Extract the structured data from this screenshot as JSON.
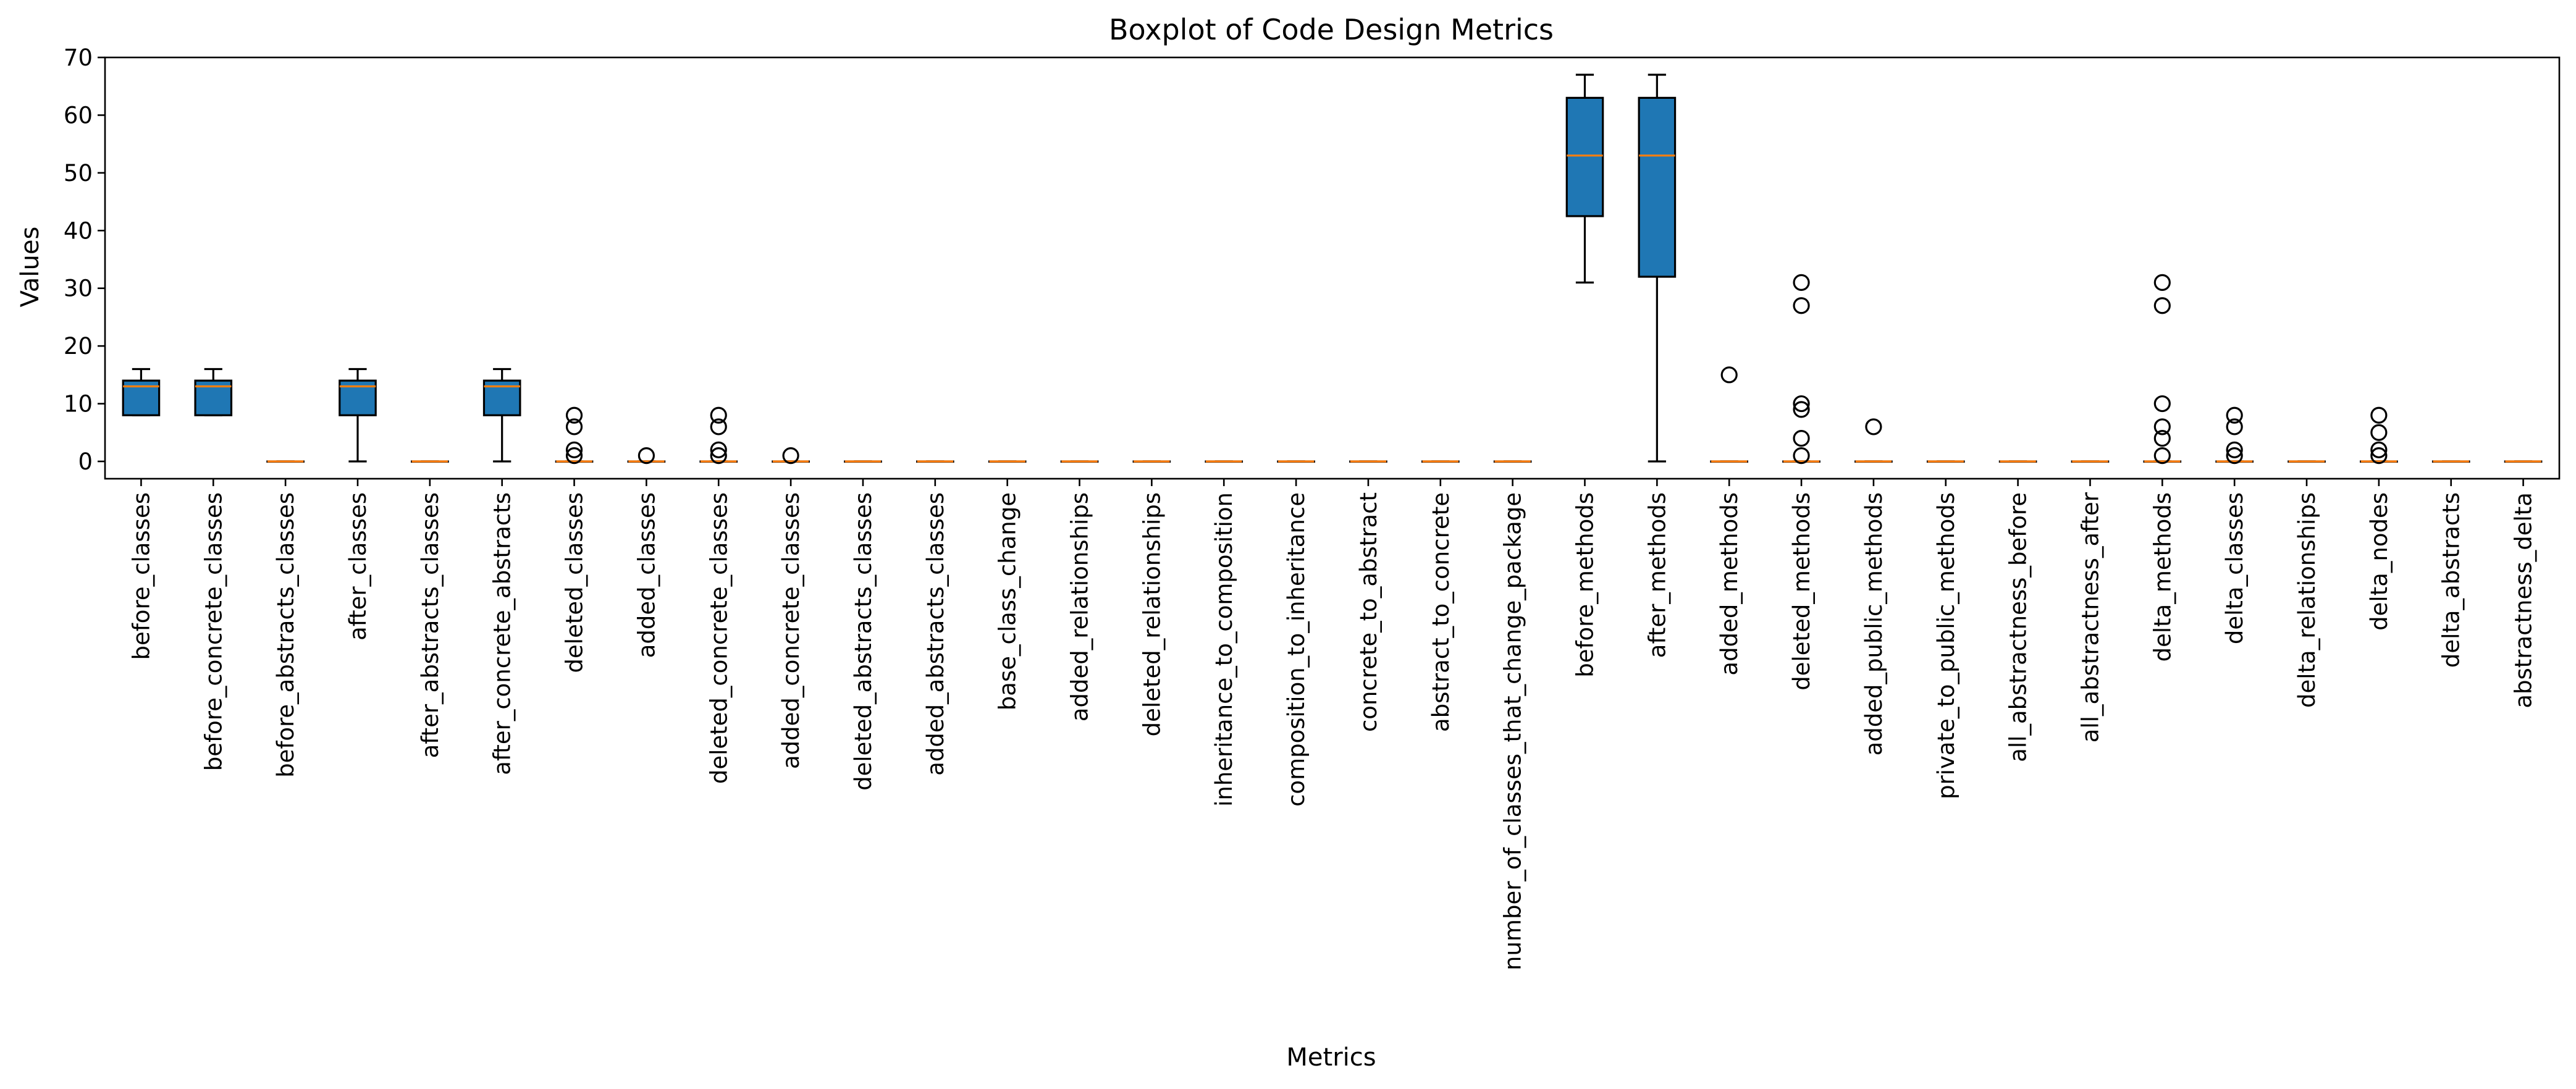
{
  "chart_data": {
    "type": "boxplot",
    "title": "Boxplot of Code Design Metrics",
    "xlabel": "Metrics",
    "ylabel": "Values",
    "ylim": [
      -3,
      70
    ],
    "yticks": [
      0,
      10,
      20,
      30,
      40,
      50,
      60,
      70
    ],
    "grid": false,
    "colors": {
      "box_fill": "#1f77b4",
      "median": "#ff7f0e",
      "edge": "#000000"
    },
    "categories": [
      "before_classes",
      "before_concrete_classes",
      "before_abstracts_classes",
      "after_classes",
      "after_abstracts_classes",
      "after_concrete_abstracts",
      "deleted_classes",
      "added_classes",
      "deleted_concrete_classes",
      "added_concrete_classes",
      "deleted_abstracts_classes",
      "added_abstracts_classes",
      "base_class_change",
      "added_relationships",
      "deleted_relationships",
      "inheritance_to_composition",
      "composition_to_inheritance",
      "concrete_to_abstract",
      "abstract_to_concrete",
      "number_of_classes_that_change_package",
      "before_methods",
      "after_methods",
      "added_methods",
      "deleted_methods",
      "added_public_methods",
      "private_to_public_methods",
      "all_abstractness_before",
      "all_abstractness_after",
      "delta_methods",
      "delta_classes",
      "delta_relationships",
      "delta_nodes",
      "delta_abstracts",
      "abstractness_delta"
    ],
    "boxes": [
      {
        "whislo": 8,
        "q1": 8,
        "med": 13,
        "q3": 14,
        "whishi": 16,
        "fliers": []
      },
      {
        "whislo": 8,
        "q1": 8,
        "med": 13,
        "q3": 14,
        "whishi": 16,
        "fliers": []
      },
      {
        "whislo": 0,
        "q1": 0,
        "med": 0,
        "q3": 0,
        "whishi": 0,
        "fliers": []
      },
      {
        "whislo": 0,
        "q1": 8,
        "med": 13,
        "q3": 14,
        "whishi": 16,
        "fliers": []
      },
      {
        "whislo": 0,
        "q1": 0,
        "med": 0,
        "q3": 0,
        "whishi": 0,
        "fliers": []
      },
      {
        "whislo": 0,
        "q1": 8,
        "med": 13,
        "q3": 14,
        "whishi": 16,
        "fliers": []
      },
      {
        "whislo": 0,
        "q1": 0,
        "med": 0,
        "q3": 0,
        "whishi": 0,
        "fliers": [
          8,
          6,
          2,
          1
        ]
      },
      {
        "whislo": 0,
        "q1": 0,
        "med": 0,
        "q3": 0,
        "whishi": 0,
        "fliers": [
          1
        ]
      },
      {
        "whislo": 0,
        "q1": 0,
        "med": 0,
        "q3": 0,
        "whishi": 0,
        "fliers": [
          8,
          6,
          2,
          1
        ]
      },
      {
        "whislo": 0,
        "q1": 0,
        "med": 0,
        "q3": 0,
        "whishi": 0,
        "fliers": [
          1
        ]
      },
      {
        "whislo": 0,
        "q1": 0,
        "med": 0,
        "q3": 0,
        "whishi": 0,
        "fliers": []
      },
      {
        "whislo": 0,
        "q1": 0,
        "med": 0,
        "q3": 0,
        "whishi": 0,
        "fliers": []
      },
      {
        "whislo": 0,
        "q1": 0,
        "med": 0,
        "q3": 0,
        "whishi": 0,
        "fliers": []
      },
      {
        "whislo": 0,
        "q1": 0,
        "med": 0,
        "q3": 0,
        "whishi": 0,
        "fliers": []
      },
      {
        "whislo": 0,
        "q1": 0,
        "med": 0,
        "q3": 0,
        "whishi": 0,
        "fliers": []
      },
      {
        "whislo": 0,
        "q1": 0,
        "med": 0,
        "q3": 0,
        "whishi": 0,
        "fliers": []
      },
      {
        "whislo": 0,
        "q1": 0,
        "med": 0,
        "q3": 0,
        "whishi": 0,
        "fliers": []
      },
      {
        "whislo": 0,
        "q1": 0,
        "med": 0,
        "q3": 0,
        "whishi": 0,
        "fliers": []
      },
      {
        "whislo": 0,
        "q1": 0,
        "med": 0,
        "q3": 0,
        "whishi": 0,
        "fliers": []
      },
      {
        "whislo": 0,
        "q1": 0,
        "med": 0,
        "q3": 0,
        "whishi": 0,
        "fliers": []
      },
      {
        "whislo": 31,
        "q1": 42.5,
        "med": 53,
        "q3": 63,
        "whishi": 67,
        "fliers": []
      },
      {
        "whislo": 0,
        "q1": 32,
        "med": 53,
        "q3": 63,
        "whishi": 67,
        "fliers": []
      },
      {
        "whislo": 0,
        "q1": 0,
        "med": 0,
        "q3": 0,
        "whishi": 0,
        "fliers": [
          15
        ]
      },
      {
        "whislo": 0,
        "q1": 0,
        "med": 0,
        "q3": 0,
        "whishi": 0,
        "fliers": [
          31,
          27,
          10,
          9,
          4,
          1
        ]
      },
      {
        "whislo": 0,
        "q1": 0,
        "med": 0,
        "q3": 0,
        "whishi": 0,
        "fliers": [
          6
        ]
      },
      {
        "whislo": 0,
        "q1": 0,
        "med": 0,
        "q3": 0,
        "whishi": 0,
        "fliers": []
      },
      {
        "whislo": 0,
        "q1": 0,
        "med": 0,
        "q3": 0,
        "whishi": 0,
        "fliers": []
      },
      {
        "whislo": 0,
        "q1": 0,
        "med": 0,
        "q3": 0,
        "whishi": 0,
        "fliers": []
      },
      {
        "whislo": 0,
        "q1": 0,
        "med": 0,
        "q3": 0,
        "whishi": 0,
        "fliers": [
          31,
          27,
          10,
          6,
          4,
          1
        ]
      },
      {
        "whislo": 0,
        "q1": 0,
        "med": 0,
        "q3": 0,
        "whishi": 0,
        "fliers": [
          8,
          6,
          2,
          1
        ]
      },
      {
        "whislo": 0,
        "q1": 0,
        "med": 0,
        "q3": 0,
        "whishi": 0,
        "fliers": []
      },
      {
        "whislo": 0,
        "q1": 0,
        "med": 0,
        "q3": 0,
        "whishi": 0,
        "fliers": [
          8,
          5,
          2,
          1
        ]
      },
      {
        "whislo": 0,
        "q1": 0,
        "med": 0,
        "q3": 0,
        "whishi": 0,
        "fliers": []
      },
      {
        "whislo": 0,
        "q1": 0,
        "med": 0,
        "q3": 0,
        "whishi": 0,
        "fliers": []
      }
    ]
  }
}
